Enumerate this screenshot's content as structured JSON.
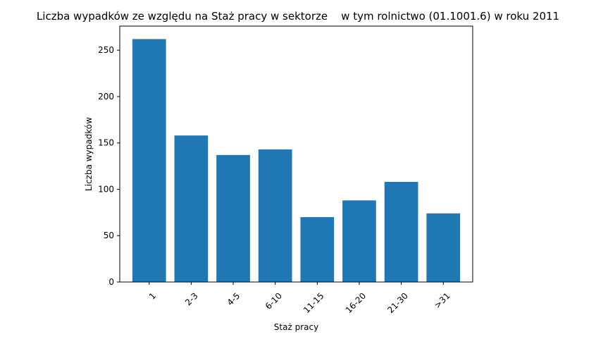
{
  "chart_data": {
    "type": "bar",
    "title": "Liczba wypadków ze względu na Staż pracy w sektorze    w tym rolnictwo (01.1001.6) w roku 2011",
    "xlabel": "Staż pracy",
    "ylabel": "Liczba wypadków",
    "categories": [
      "1",
      "2-3",
      "4-5",
      "6-10",
      "11-15",
      "16-20",
      "21-30",
      ">31"
    ],
    "values": [
      262,
      158,
      137,
      143,
      70,
      88,
      108,
      74
    ],
    "ylim": [
      0,
      276
    ],
    "yticks": [
      0,
      50,
      100,
      150,
      200,
      250
    ],
    "bar_color": "#1f77b4",
    "grid": false,
    "legend": "none"
  }
}
